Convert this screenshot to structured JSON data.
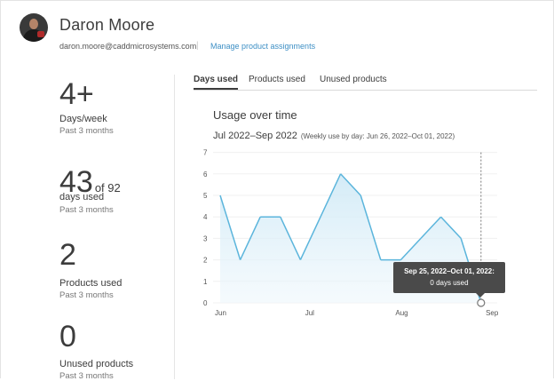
{
  "user": {
    "name": "Daron Moore",
    "email": "daron.moore@caddmicrosystems.com",
    "separator": "|",
    "manage_link": "Manage product assignments"
  },
  "stats": {
    "days_per_week": {
      "value": "4+",
      "label": "Days/week",
      "period": "Past 3 months"
    },
    "days_used": {
      "value": "43",
      "of_text": "of 92",
      "label": "days used",
      "period": "Past 3 months"
    },
    "products_used": {
      "value": "2",
      "label": "Products used",
      "period": "Past 3 months"
    },
    "unused_products": {
      "value": "0",
      "label": "Unused products",
      "period": "Past 3 months"
    }
  },
  "tabs": [
    "Days used",
    "Products used",
    "Unused products"
  ],
  "active_tab": 0,
  "chart": {
    "title": "Usage over time",
    "range": "Jul 2022–Sep 2022",
    "range_note": "(Weekly use by day: Jun 26, 2022–Oct 01, 2022)"
  },
  "tooltip": {
    "title": "Sep 25, 2022–Oct 01, 2022:",
    "value": "0 days used"
  },
  "colors": {
    "line": "#5bb5dc",
    "accent_link": "#3d8fc5",
    "tooltip_bg": "#4a4a4a"
  },
  "chart_data": {
    "type": "area",
    "x": [
      "Jun 26",
      "Jul 3",
      "Jul 10",
      "Jul 17",
      "Jul 24",
      "Jul 31",
      "Aug 7",
      "Aug 14",
      "Aug 21",
      "Aug 28",
      "Sep 4",
      "Sep 11",
      "Sep 18",
      "Sep 25"
    ],
    "values": [
      5,
      2,
      4,
      4,
      2,
      4,
      6,
      5,
      2,
      2,
      3,
      4,
      3,
      0
    ],
    "xticks": [
      "Jun",
      "Jul",
      "Aug",
      "Sep"
    ],
    "yticks": [
      "0",
      "1",
      "2",
      "3",
      "4",
      "5",
      "6",
      "7"
    ],
    "ylim": [
      0,
      7
    ],
    "highlight_index": 13
  }
}
